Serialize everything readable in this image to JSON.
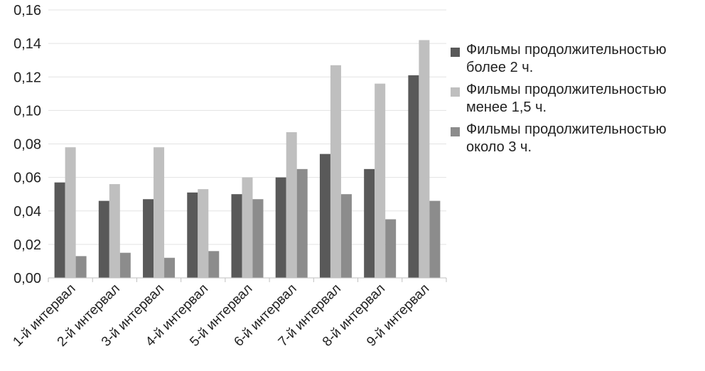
{
  "chart_data": {
    "type": "bar",
    "categories": [
      "1-й интервал",
      "2-й интервал",
      "3-й интервал",
      "4-й интервал",
      "5-й интервал",
      "6-й интервал",
      "7-й интервал",
      "8-й интервал",
      "9-й интервал"
    ],
    "series": [
      {
        "name": "Фильмы продолжительностью более 2 ч.",
        "color": "#595959",
        "values": [
          0.057,
          0.046,
          0.047,
          0.051,
          0.05,
          0.06,
          0.074,
          0.065,
          0.121
        ]
      },
      {
        "name": "Фильмы продолжительностью менее 1,5 ч.",
        "color": "#bfbfbf",
        "values": [
          0.078,
          0.056,
          0.078,
          0.053,
          0.06,
          0.087,
          0.127,
          0.116,
          0.142
        ]
      },
      {
        "name": "Фильмы продолжительностью около 3 ч.",
        "color": "#8c8c8c",
        "values": [
          0.013,
          0.015,
          0.012,
          0.016,
          0.047,
          0.065,
          0.05,
          0.035,
          0.046
        ]
      }
    ],
    "y_ticks": [
      "0,00",
      "0,02",
      "0,04",
      "0,06",
      "0,08",
      "0,10",
      "0,12",
      "0,14",
      "0,16"
    ],
    "ylim": [
      0,
      0.16
    ],
    "grid": true,
    "legend_position": "right"
  }
}
